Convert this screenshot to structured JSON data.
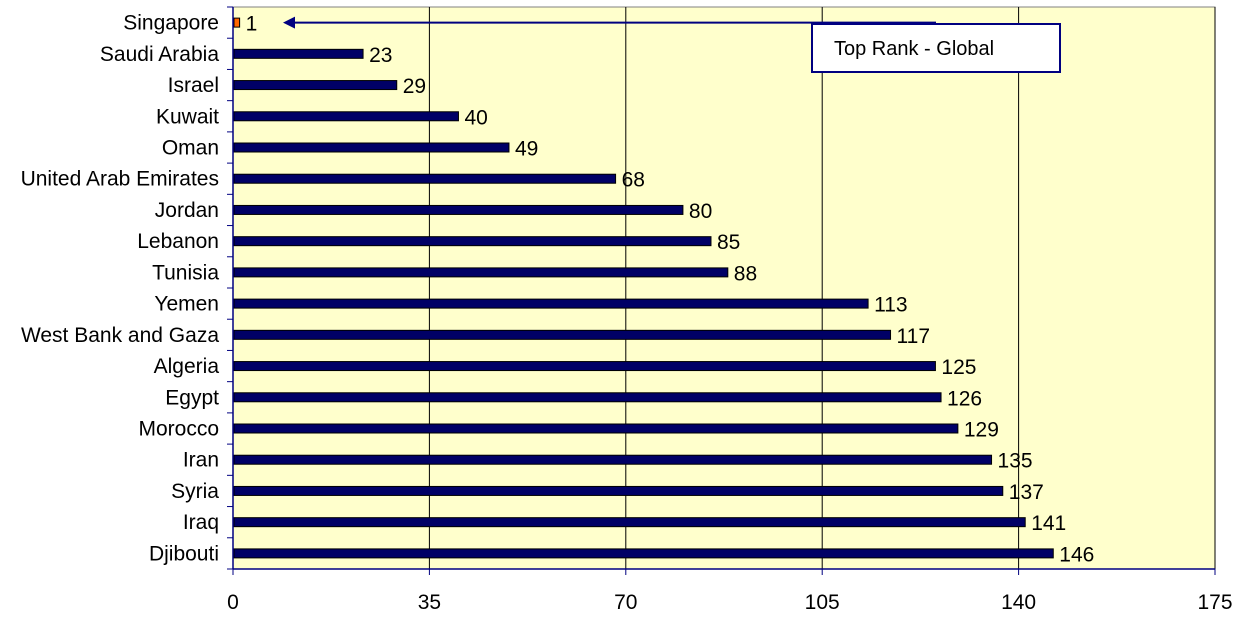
{
  "colors": {
    "plot_background": "#ffffcc",
    "bar_fill": "#000066",
    "highlight_bar_fill": "#ff6600",
    "axis_color": "#000080",
    "grid_color": "#000000"
  },
  "callout": {
    "text": "Top Rank - Global",
    "arrow_target_category": "Singapore"
  },
  "chart_data": {
    "type": "bar",
    "orientation": "horizontal",
    "categories": [
      "Singapore",
      "Saudi Arabia",
      "Israel",
      "Kuwait",
      "Oman",
      "United Arab Emirates",
      "Jordan",
      "Lebanon",
      "Tunisia",
      "Yemen",
      "West Bank and Gaza",
      "Algeria",
      "Egypt",
      "Morocco",
      "Iran",
      "Syria",
      "Iraq",
      "Djibouti"
    ],
    "values": [
      1,
      23,
      29,
      40,
      49,
      68,
      80,
      85,
      88,
      113,
      117,
      125,
      126,
      129,
      135,
      137,
      141,
      146
    ],
    "highlight_category": "Singapore",
    "xlim": [
      0,
      175
    ],
    "x_ticks": [
      0,
      35,
      70,
      105,
      140,
      175
    ],
    "grid": true,
    "title": "",
    "xlabel": "",
    "ylabel": "",
    "legend": "none"
  }
}
